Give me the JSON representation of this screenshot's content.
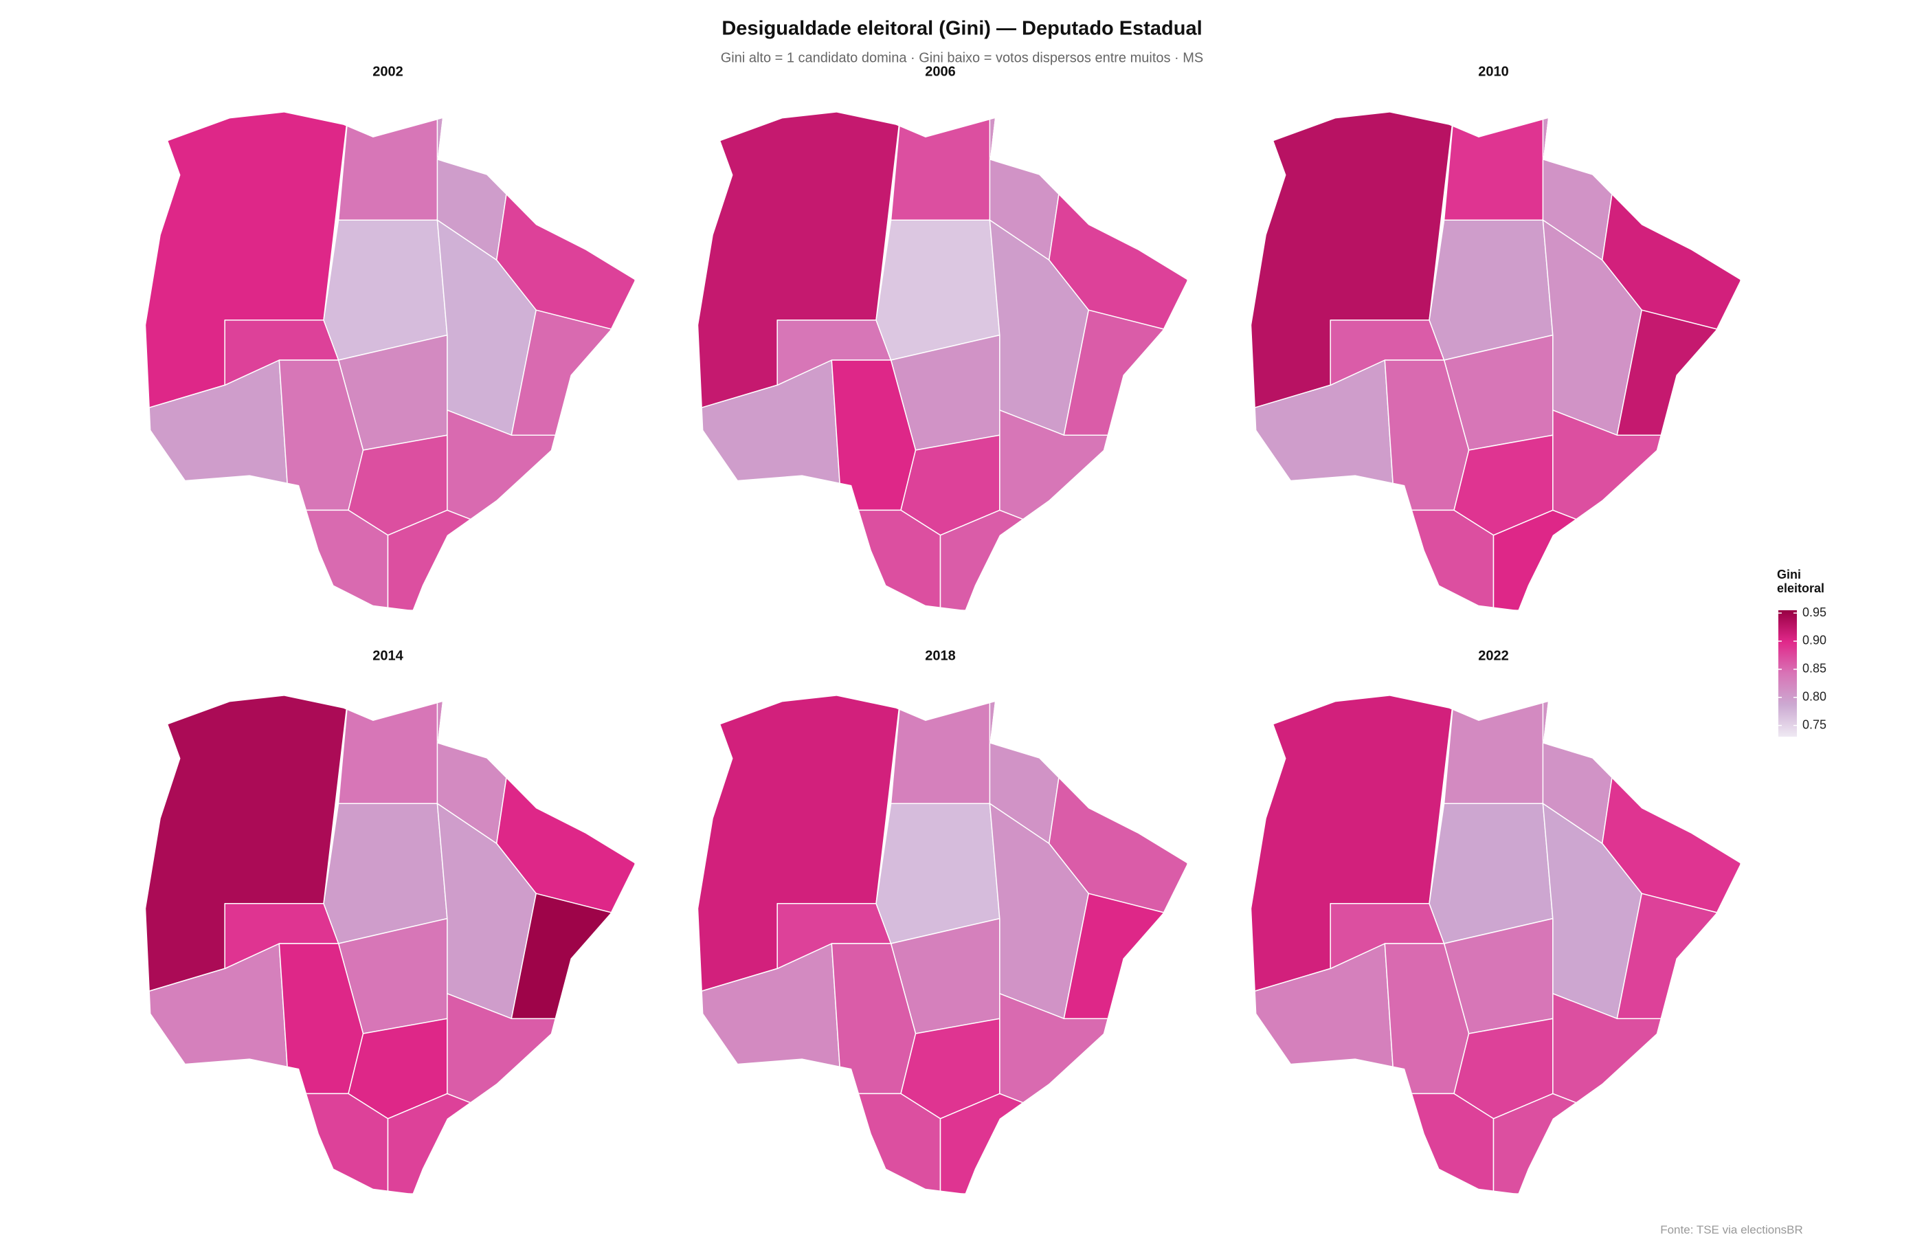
{
  "chart_data": {
    "type": "choropleth",
    "title": "Desigualdade eleitoral (Gini) — Deputado Estadual",
    "subtitle": "Gini alto = 1 candidato domina · Gini baixo = votos dispersos entre muitos · MS",
    "panels": [
      {
        "title": "2002",
        "values": [
          0.9,
          0.8,
          0.88,
          0.84,
          0.8,
          0.88,
          0.77,
          0.78,
          0.85,
          0.85,
          0.82,
          0.84,
          0.87,
          0.85,
          0.87
        ]
      },
      {
        "title": "2006",
        "values": [
          0.92,
          0.8,
          0.84,
          0.87,
          0.81,
          0.88,
          0.76,
          0.8,
          0.86,
          0.84,
          0.81,
          0.9,
          0.88,
          0.87,
          0.86
        ]
      },
      {
        "title": "2010",
        "values": [
          0.93,
          0.8,
          0.86,
          0.89,
          0.81,
          0.91,
          0.8,
          0.81,
          0.92,
          0.87,
          0.84,
          0.85,
          0.89,
          0.87,
          0.9
        ]
      },
      {
        "title": "2014",
        "values": [
          0.94,
          0.83,
          0.89,
          0.84,
          0.82,
          0.9,
          0.8,
          0.8,
          0.95,
          0.86,
          0.84,
          0.9,
          0.9,
          0.88,
          0.88
        ]
      },
      {
        "title": "2018",
        "values": [
          0.91,
          0.82,
          0.88,
          0.83,
          0.81,
          0.86,
          0.77,
          0.81,
          0.9,
          0.85,
          0.83,
          0.86,
          0.89,
          0.87,
          0.89
        ]
      },
      {
        "title": "2022",
        "values": [
          0.91,
          0.83,
          0.87,
          0.82,
          0.81,
          0.89,
          0.79,
          0.79,
          0.88,
          0.87,
          0.84,
          0.85,
          0.88,
          0.88,
          0.87
        ]
      }
    ],
    "legend_title": "Gini eleitoral",
    "zlim": [
      0.73,
      0.955
    ],
    "zticks": [
      0.75,
      {
        "value": 0.8,
        "label": "0.80"
      },
      0.85,
      {
        "value": 0.9,
        "label": "0.90"
      },
      0.95
    ],
    "colors": [
      "#efe9f3",
      "#ccaad2",
      "#d874b6",
      "#e0288a",
      "#980043"
    ],
    "source": "Fonte: TSE via electionsBR"
  }
}
